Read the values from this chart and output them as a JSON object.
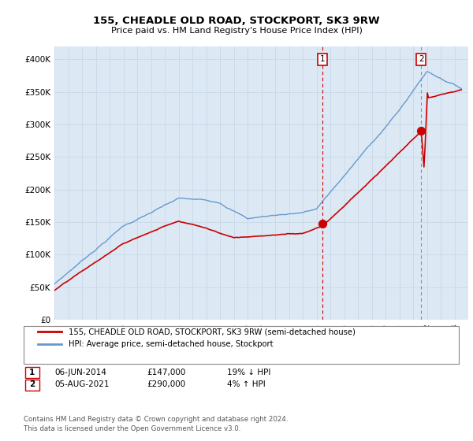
{
  "title": "155, CHEADLE OLD ROAD, STOCKPORT, SK3 9RW",
  "subtitle": "Price paid vs. HM Land Registry's House Price Index (HPI)",
  "plot_bg_color": "#dce9f5",
  "ylim": [
    0,
    420000
  ],
  "yticks": [
    0,
    50000,
    100000,
    150000,
    200000,
    250000,
    300000,
    350000,
    400000
  ],
  "ytick_labels": [
    "£0",
    "£50K",
    "£100K",
    "£150K",
    "£200K",
    "£250K",
    "£300K",
    "£350K",
    "£400K"
  ],
  "xlim_start": 1995,
  "xlim_end": 2025,
  "transaction1": {
    "date": "06-JUN-2014",
    "price": 147000,
    "label": "1",
    "pct": "19% ↓ HPI",
    "year": 2014.44
  },
  "transaction2": {
    "date": "05-AUG-2021",
    "price": 290000,
    "label": "2",
    "pct": "4% ↑ HPI",
    "year": 2021.59
  },
  "legend_property": "155, CHEADLE OLD ROAD, STOCKPORT, SK3 9RW (semi-detached house)",
  "legend_hpi": "HPI: Average price, semi-detached house, Stockport",
  "footer": "Contains HM Land Registry data © Crown copyright and database right 2024.\nThis data is licensed under the Open Government Licence v3.0.",
  "property_color": "#cc0000",
  "hpi_color": "#6699cc",
  "vline1_color": "#cc0000",
  "vline2_color": "#6699cc",
  "marker_color": "#cc0000",
  "grid_color": "#c8d8e8"
}
